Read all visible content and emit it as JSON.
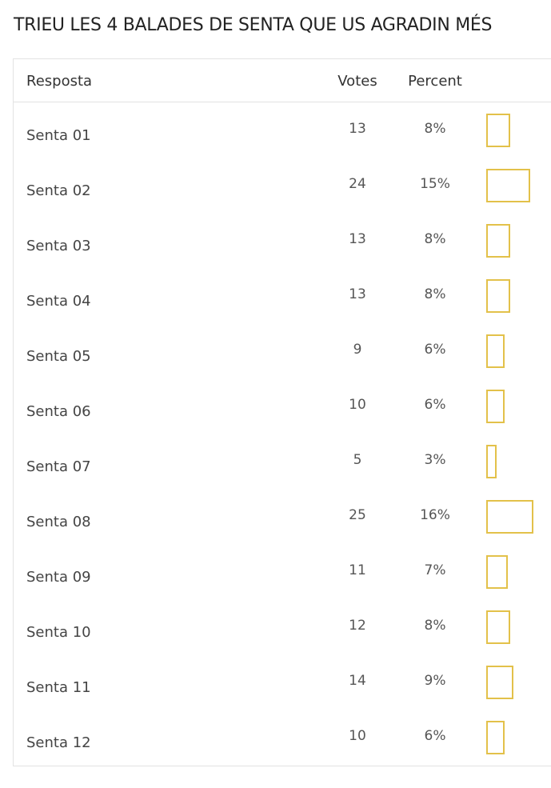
{
  "title": "TRIEU LES 4 BALADES DE SENTA QUE US AGRADIN MÉS",
  "table": {
    "headers": {
      "response": "Resposta",
      "votes": "Votes",
      "percent": "Percent"
    },
    "bar_color": "#e3c14a",
    "rows": [
      {
        "name": "Senta 01",
        "votes": "13",
        "percent": "8%",
        "percent_value": 8
      },
      {
        "name": "Senta 02",
        "votes": "24",
        "percent": "15%",
        "percent_value": 15
      },
      {
        "name": "Senta 03",
        "votes": "13",
        "percent": "8%",
        "percent_value": 8
      },
      {
        "name": "Senta 04",
        "votes": "13",
        "percent": "8%",
        "percent_value": 8
      },
      {
        "name": "Senta 05",
        "votes": "9",
        "percent": "6%",
        "percent_value": 6
      },
      {
        "name": "Senta 06",
        "votes": "10",
        "percent": "6%",
        "percent_value": 6
      },
      {
        "name": "Senta 07",
        "votes": "5",
        "percent": "3%",
        "percent_value": 3
      },
      {
        "name": "Senta 08",
        "votes": "25",
        "percent": "16%",
        "percent_value": 16
      },
      {
        "name": "Senta 09",
        "votes": "11",
        "percent": "7%",
        "percent_value": 7
      },
      {
        "name": "Senta 10",
        "votes": "12",
        "percent": "8%",
        "percent_value": 8
      },
      {
        "name": "Senta 11",
        "votes": "14",
        "percent": "9%",
        "percent_value": 9
      },
      {
        "name": "Senta 12",
        "votes": "10",
        "percent": "6%",
        "percent_value": 6
      }
    ]
  }
}
